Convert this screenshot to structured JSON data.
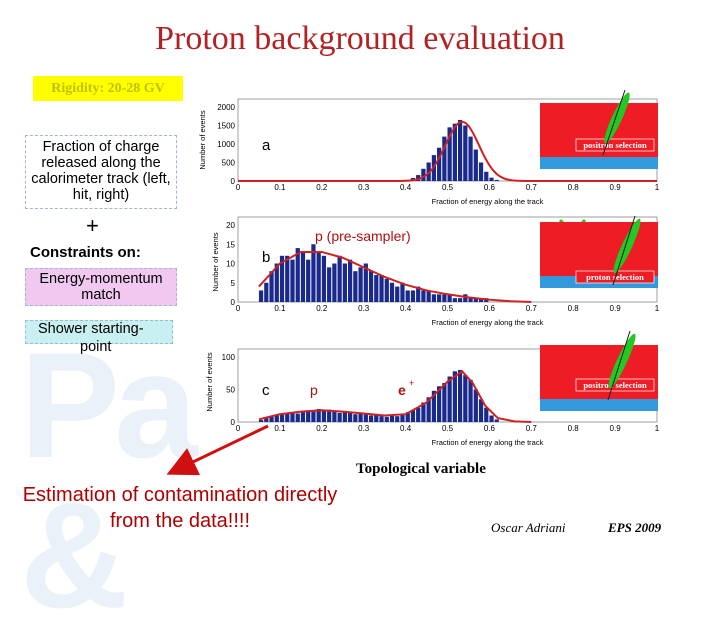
{
  "title": "Proton background evaluation",
  "rigidity": "Rigidity: 20-28 GV",
  "left": {
    "fraction_text": "Fraction of charge released along the calorimeter track (left, hit, right)",
    "plus": "+",
    "constraints": "Constraints on:",
    "energy_match": "Energy-momentum match",
    "shower_line1": "Shower starting-",
    "shower_line2": "point"
  },
  "estimation": "Estimation of contamination directly from the data!!!!",
  "topological": "Topological variable",
  "footer": {
    "author": "Oscar Adriani",
    "conference": "EPS 2009"
  },
  "colors": {
    "title": "#b22222",
    "bars": "#1a2a8c",
    "fit": "#d02020",
    "panel_red": "#ee1c24",
    "panel_blue": "#3399dd",
    "track_green": "#22c922"
  },
  "chart_data": [
    {
      "type": "bar",
      "panel_label": "a",
      "ylabel": "Number of events",
      "xlabel": "Fraction of energy along the track",
      "xlim": [
        0,
        1
      ],
      "ylim": [
        0,
        2000
      ],
      "yticks": [
        "0",
        "500",
        "1000",
        "1500",
        "2000"
      ],
      "xticks": [
        "0",
        "0.1",
        "0.2",
        "0.3",
        "0.4",
        "0.5",
        "0.6",
        "0.7",
        "0.8",
        "0.9",
        "1"
      ],
      "annotation": "positron selection",
      "bin_width": 0.0125,
      "x": [
        0.4,
        0.4125,
        0.425,
        0.4375,
        0.45,
        0.4625,
        0.475,
        0.4875,
        0.5,
        0.5125,
        0.525,
        0.5375,
        0.55,
        0.5625,
        0.575,
        0.5875,
        0.6,
        0.6125
      ],
      "values": [
        30,
        80,
        160,
        330,
        500,
        700,
        900,
        1200,
        1450,
        1550,
        1650,
        1500,
        1200,
        850,
        500,
        250,
        90,
        30
      ],
      "fit": {
        "type": "gaussian",
        "mean": 0.535,
        "sigma": 0.04,
        "amplitude": 1600
      }
    },
    {
      "type": "bar",
      "panel_label": "b",
      "ylabel": "Number of events",
      "xlabel": "Fraction of energy along the track",
      "xlim": [
        0,
        1
      ],
      "ylim": [
        0,
        20
      ],
      "yticks": [
        "0",
        "5",
        "10",
        "15",
        "20"
      ],
      "xticks": [
        "0",
        "0.1",
        "0.2",
        "0.3",
        "0.4",
        "0.5",
        "0.6",
        "0.7",
        "0.8",
        "0.9",
        "1"
      ],
      "annotation": "p (pre-sampler)",
      "annotation2": "proton selection",
      "bin_width": 0.0125,
      "x": [
        0.05,
        0.0625,
        0.075,
        0.0875,
        0.1,
        0.1125,
        0.125,
        0.1375,
        0.15,
        0.1625,
        0.175,
        0.1875,
        0.2,
        0.2125,
        0.225,
        0.2375,
        0.25,
        0.2625,
        0.275,
        0.2875,
        0.3,
        0.3125,
        0.325,
        0.3375,
        0.35,
        0.3625,
        0.375,
        0.3875,
        0.4,
        0.4125,
        0.425,
        0.4375,
        0.45,
        0.4625,
        0.475,
        0.4875,
        0.5,
        0.5125,
        0.525,
        0.5375,
        0.55,
        0.5625,
        0.575,
        0.5875
      ],
      "values": [
        3,
        5,
        8,
        10,
        12,
        12,
        11,
        14,
        13,
        11,
        15,
        13,
        12,
        9,
        10,
        12,
        10,
        11,
        8,
        9,
        10,
        8,
        7,
        7,
        6,
        5,
        4,
        5,
        3,
        3,
        4,
        3,
        3,
        2,
        2,
        2,
        2,
        1,
        1,
        2,
        1,
        1,
        1,
        1
      ],
      "fit": {
        "type": "smooth",
        "points": [
          [
            0.05,
            4
          ],
          [
            0.1,
            10
          ],
          [
            0.15,
            13
          ],
          [
            0.2,
            13
          ],
          [
            0.25,
            11.5
          ],
          [
            0.3,
            9
          ],
          [
            0.35,
            6.5
          ],
          [
            0.4,
            4.5
          ],
          [
            0.45,
            3
          ],
          [
            0.5,
            2
          ],
          [
            0.55,
            1.2
          ],
          [
            0.6,
            0.6
          ],
          [
            0.65,
            0.2
          ],
          [
            0.7,
            0
          ]
        ]
      }
    },
    {
      "type": "bar",
      "panel_label": "c",
      "ylabel": "Number of events",
      "xlabel": "Fraction of energy along the track",
      "xlim": [
        0,
        1
      ],
      "ylim": [
        0,
        100
      ],
      "yticks": [
        "0",
        "50",
        "100"
      ],
      "xticks": [
        "0",
        "0.1",
        "0.2",
        "0.3",
        "0.4",
        "0.5",
        "0.6",
        "0.7",
        "0.8",
        "0.9",
        "1"
      ],
      "annotation": "p",
      "annotation_e": "e",
      "annotation_e_sup": "+",
      "annotation2": "positron selection",
      "bin_width": 0.0125,
      "x": [
        0.05,
        0.0625,
        0.075,
        0.0875,
        0.1,
        0.1125,
        0.125,
        0.1375,
        0.15,
        0.1625,
        0.175,
        0.1875,
        0.2,
        0.2125,
        0.225,
        0.2375,
        0.25,
        0.2625,
        0.275,
        0.2875,
        0.3,
        0.3125,
        0.325,
        0.3375,
        0.35,
        0.3625,
        0.375,
        0.3875,
        0.4,
        0.4125,
        0.425,
        0.4375,
        0.45,
        0.4625,
        0.475,
        0.4875,
        0.5,
        0.5125,
        0.525,
        0.5375,
        0.55,
        0.5625,
        0.575,
        0.5875,
        0.6,
        0.6125
      ],
      "values": [
        3,
        6,
        8,
        10,
        12,
        14,
        15,
        13,
        17,
        18,
        16,
        20,
        18,
        19,
        17,
        14,
        16,
        15,
        12,
        14,
        13,
        10,
        12,
        9,
        8,
        10,
        9,
        12,
        15,
        18,
        22,
        30,
        38,
        48,
        55,
        60,
        70,
        78,
        80,
        72,
        65,
        50,
        35,
        22,
        10,
        4
      ],
      "fit": {
        "type": "smooth",
        "points": [
          [
            0.05,
            4
          ],
          [
            0.1,
            12
          ],
          [
            0.15,
            16
          ],
          [
            0.2,
            18
          ],
          [
            0.25,
            16
          ],
          [
            0.3,
            13
          ],
          [
            0.35,
            10
          ],
          [
            0.4,
            12
          ],
          [
            0.45,
            30
          ],
          [
            0.5,
            62
          ],
          [
            0.535,
            78
          ],
          [
            0.56,
            60
          ],
          [
            0.59,
            25
          ],
          [
            0.62,
            6
          ],
          [
            0.66,
            1
          ],
          [
            0.7,
            0
          ]
        ]
      }
    }
  ]
}
